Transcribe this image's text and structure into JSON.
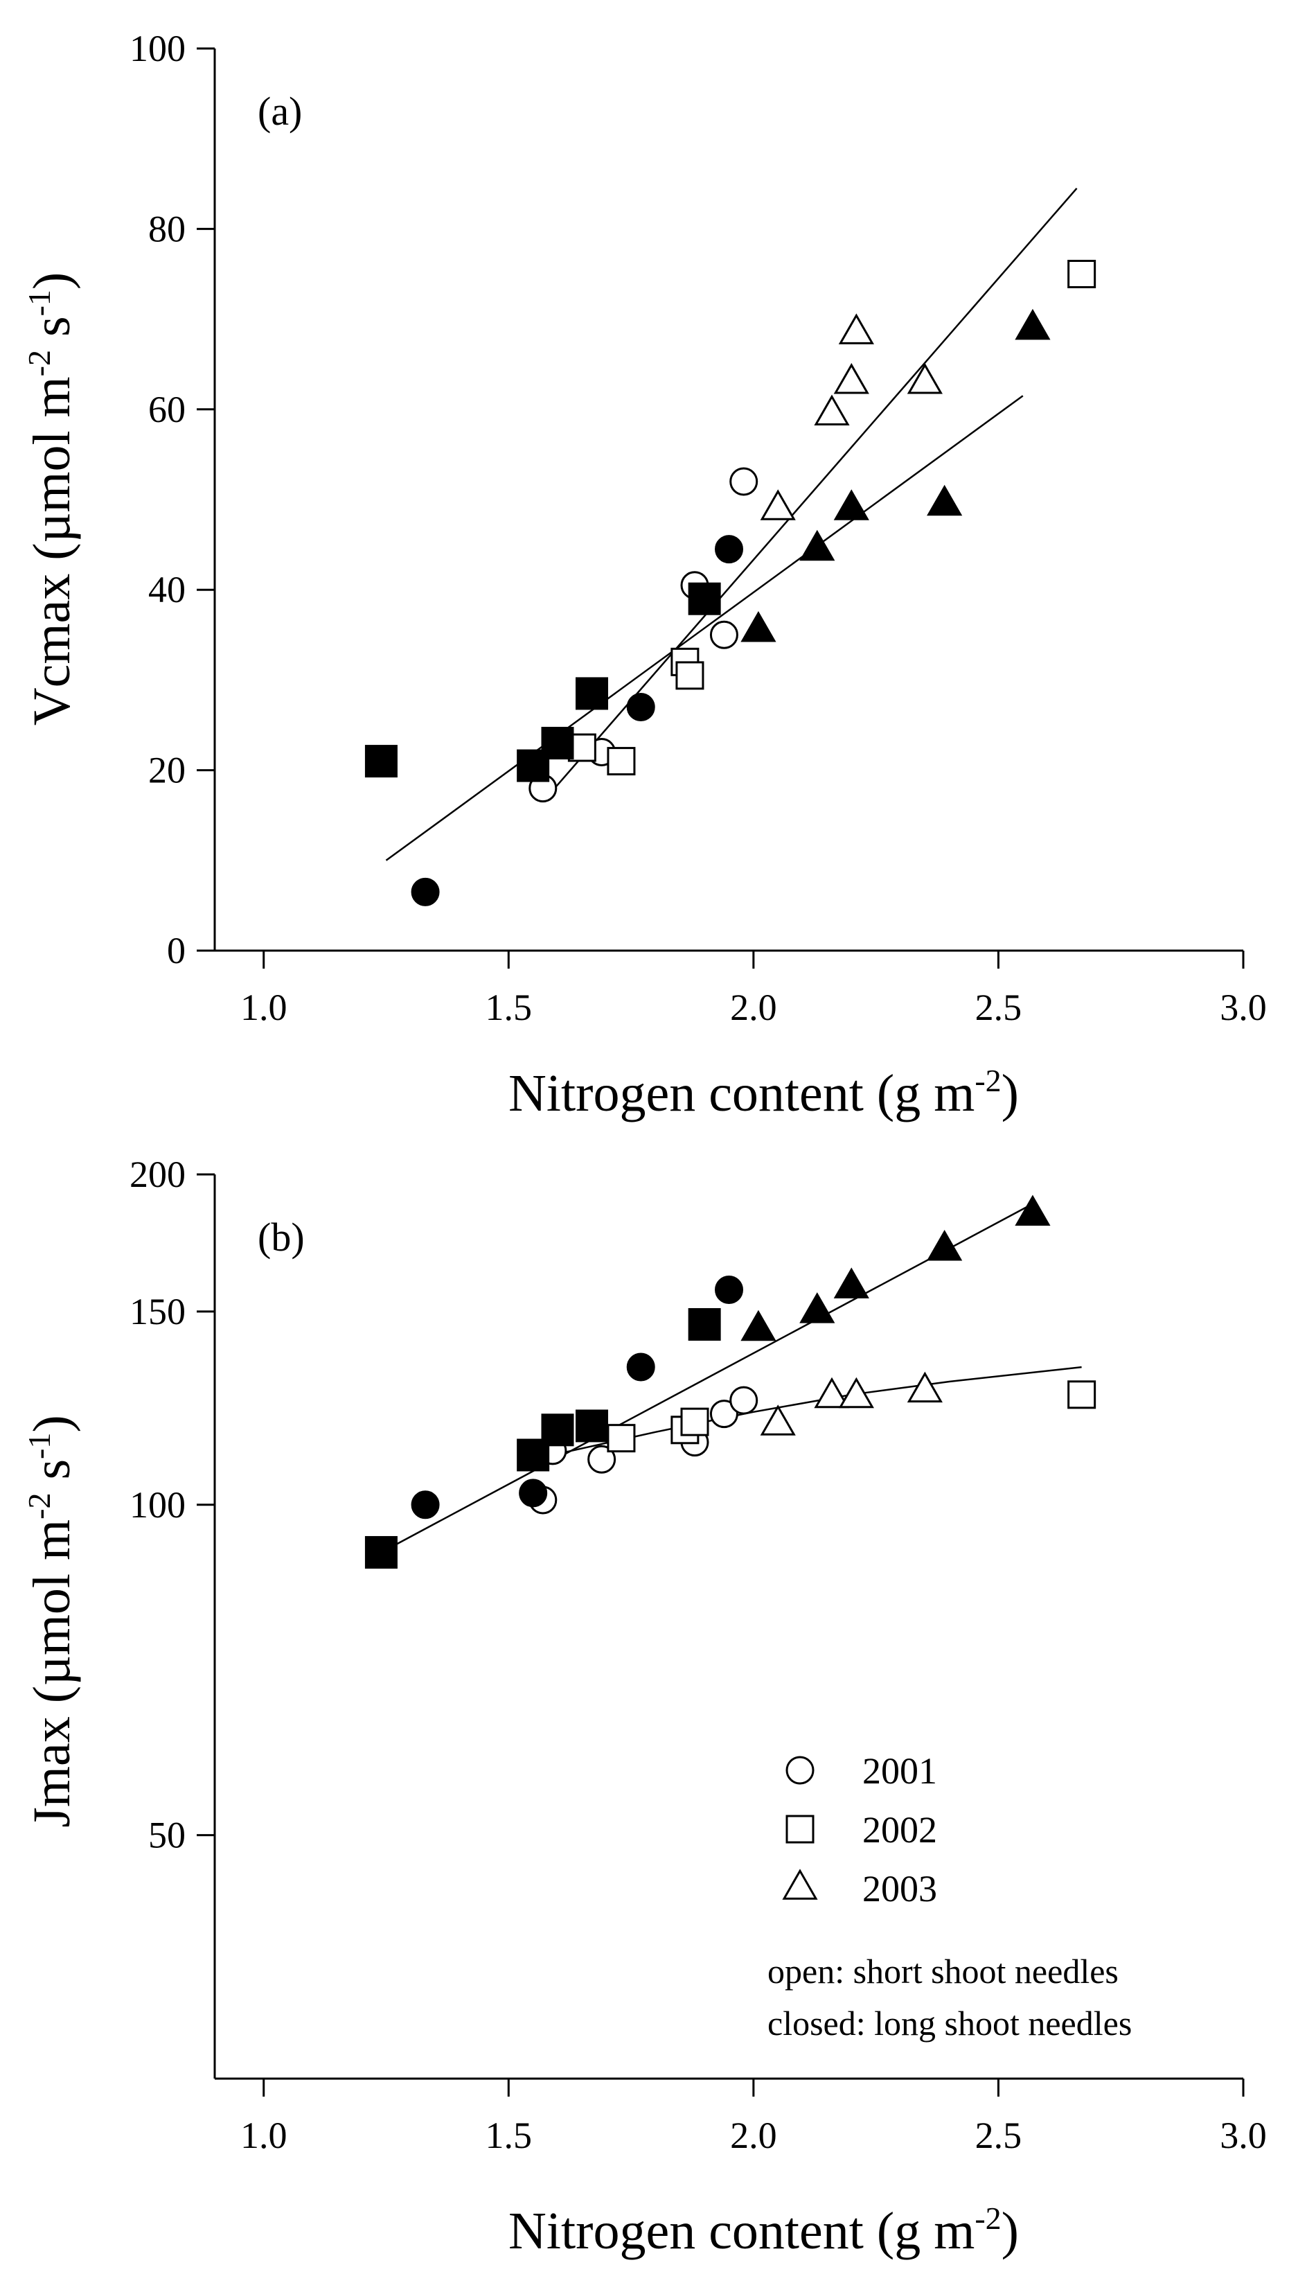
{
  "chart_data": [
    {
      "type": "scatter",
      "panel_label": "(a)",
      "ylabel": {
        "main": "Vcmax (µmol m",
        "sup1": "-2",
        "mid": " s",
        "sup2": "-1",
        "end": ")"
      },
      "xlabel": {
        "main": "Nitrogen content (g m",
        "sup": "-2",
        "end": ")"
      },
      "xlim": [
        0.9,
        3.0
      ],
      "ylim": [
        0,
        100
      ],
      "xticks": [
        1.0,
        1.5,
        2.0,
        2.5,
        3.0
      ],
      "xtick_labels": [
        "1.0",
        "1.5",
        "2.0",
        "2.5",
        "3.0"
      ],
      "yticks": [
        0,
        20,
        40,
        60,
        80,
        100
      ],
      "ytick_labels": [
        "0",
        "20",
        "40",
        "60",
        "80",
        "100"
      ],
      "series": [
        {
          "name": "2001 open",
          "year": "2001",
          "marker": "circle",
          "filled": false,
          "points": [
            [
              1.57,
              18
            ],
            [
              1.69,
              22
            ],
            [
              1.88,
              40.5
            ],
            [
              1.94,
              35
            ],
            [
              1.98,
              52
            ]
          ]
        },
        {
          "name": "2001 closed",
          "year": "2001",
          "marker": "circle",
          "filled": true,
          "points": [
            [
              1.33,
              6.5
            ],
            [
              1.77,
              27
            ],
            [
              1.95,
              44.5
            ]
          ]
        },
        {
          "name": "2002 open",
          "year": "2002",
          "marker": "square",
          "filled": false,
          "points": [
            [
              1.65,
              22.5
            ],
            [
              1.73,
              21
            ],
            [
              1.86,
              32
            ],
            [
              1.87,
              30.5
            ],
            [
              2.67,
              75
            ]
          ]
        },
        {
          "name": "2002 closed",
          "year": "2002",
          "marker": "square",
          "filled": true,
          "points": [
            [
              1.24,
              21
            ],
            [
              1.55,
              20.5
            ],
            [
              1.6,
              23
            ],
            [
              1.67,
              28.5
            ],
            [
              1.9,
              39
            ]
          ]
        },
        {
          "name": "2003 open",
          "year": "2003",
          "marker": "triangle",
          "filled": false,
          "points": [
            [
              2.05,
              49
            ],
            [
              2.16,
              59.5
            ],
            [
              2.2,
              63
            ],
            [
              2.21,
              68.5
            ],
            [
              2.35,
              63
            ]
          ]
        },
        {
          "name": "2003 closed",
          "year": "2003",
          "marker": "triangle",
          "filled": true,
          "points": [
            [
              2.01,
              35.5
            ],
            [
              2.13,
              44.5
            ],
            [
              2.2,
              49
            ],
            [
              2.39,
              49.5
            ],
            [
              2.57,
              69
            ]
          ]
        }
      ],
      "fit_lines": [
        {
          "name": "open fit",
          "kind": "linear",
          "x0": 1.57,
          "y0": 16.5,
          "x1": 2.66,
          "y1": 84.5
        },
        {
          "name": "closed fit",
          "kind": "linear",
          "x0": 1.25,
          "y0": 10,
          "x1": 2.55,
          "y1": 61.5
        }
      ]
    },
    {
      "type": "scatter",
      "panel_label": "(b)",
      "ylabel": {
        "main": "Jmax (µmol m",
        "sup1": "-2",
        "mid": " s",
        "sup2": "-1",
        "end": ")"
      },
      "xlabel": {
        "main": "Nitrogen content (g m",
        "sup": "-2",
        "end": ")"
      },
      "xlim": [
        0.9,
        3.0
      ],
      "ylim": [
        30,
        200
      ],
      "yscale": "log",
      "xticks": [
        1.0,
        1.5,
        2.0,
        2.5,
        3.0
      ],
      "xtick_labels": [
        "1.0",
        "1.5",
        "2.0",
        "2.5",
        "3.0"
      ],
      "yticks": [
        50,
        100,
        150,
        200
      ],
      "ytick_labels": [
        "50",
        "100",
        "150",
        "200"
      ],
      "series": [
        {
          "name": "2001 open",
          "year": "2001",
          "marker": "circle",
          "filled": false,
          "points": [
            [
              1.57,
              101
            ],
            [
              1.59,
              112
            ],
            [
              1.69,
              110
            ],
            [
              1.88,
              114
            ],
            [
              1.94,
              121
            ],
            [
              1.98,
              124.5
            ]
          ]
        },
        {
          "name": "2001 closed",
          "year": "2001",
          "marker": "circle",
          "filled": true,
          "points": [
            [
              1.33,
              100
            ],
            [
              1.55,
              102.5
            ],
            [
              1.77,
              133.5
            ],
            [
              1.95,
              157
            ]
          ]
        },
        {
          "name": "2002 open",
          "year": "2002",
          "marker": "square",
          "filled": false,
          "points": [
            [
              1.73,
              115
            ],
            [
              1.86,
              117
            ],
            [
              1.88,
              119
            ],
            [
              2.67,
              126
            ]
          ]
        },
        {
          "name": "2002 closed",
          "year": "2002",
          "marker": "square",
          "filled": true,
          "points": [
            [
              1.24,
              90.5
            ],
            [
              1.55,
              111
            ],
            [
              1.6,
              117
            ],
            [
              1.67,
              118
            ],
            [
              1.9,
              146
            ]
          ]
        },
        {
          "name": "2003 open",
          "year": "2003",
          "marker": "triangle",
          "filled": false,
          "points": [
            [
              2.05,
              118.5
            ],
            [
              2.16,
              125.5
            ],
            [
              2.21,
              125.5
            ],
            [
              2.35,
              127
            ]
          ]
        },
        {
          "name": "2003 closed",
          "year": "2003",
          "marker": "triangle",
          "filled": true,
          "points": [
            [
              2.01,
              144.5
            ],
            [
              2.13,
              150
            ],
            [
              2.2,
              158
            ],
            [
              2.39,
              171
            ],
            [
              2.57,
              184
            ]
          ]
        }
      ],
      "fit_lines": [
        {
          "name": "closed fit",
          "kind": "linear",
          "x0": 1.24,
          "y0": 90.5,
          "x1": 2.56,
          "y1": 187
        },
        {
          "name": "open fit",
          "kind": "curve",
          "points": [
            [
              1.55,
              110
            ],
            [
              1.8,
              116.5
            ],
            [
              2.0,
              121.5
            ],
            [
              2.2,
              126
            ],
            [
              2.4,
              129.5
            ],
            [
              2.67,
              133.5
            ]
          ]
        }
      ],
      "legend": {
        "placement": "bottom-right",
        "entries": [
          {
            "marker": "circle",
            "label": "2001"
          },
          {
            "marker": "square",
            "label": "2002"
          },
          {
            "marker": "triangle",
            "label": "2003"
          }
        ],
        "notes": [
          "open: short shoot needles",
          "closed: long shoot needles"
        ]
      }
    }
  ]
}
